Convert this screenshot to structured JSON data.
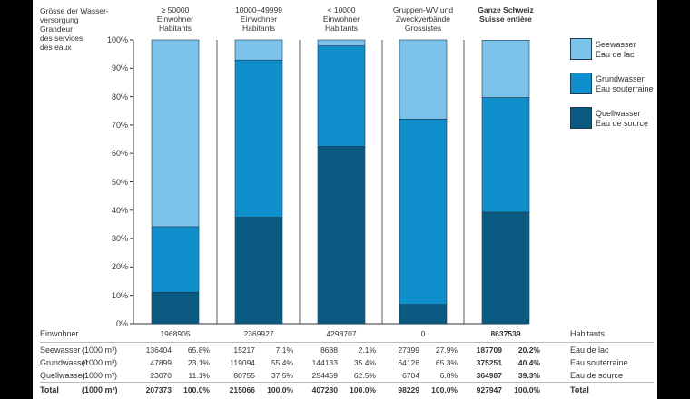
{
  "chart_data": {
    "type": "bar",
    "stacked": true,
    "title": "Grösse der Wasserversorgung / Grandeur des services des eaux",
    "title_lines": [
      "Grösse der Wasser-",
      "versorgung",
      "Grandeur",
      "des services",
      "des eaux"
    ],
    "categories": [
      {
        "de": "≥ 50000",
        "line2": "Einwohner",
        "line3": "Habitants",
        "bold": false
      },
      {
        "de": "10000–49999",
        "line2": "Einwohner",
        "line3": "Habitants",
        "bold": false
      },
      {
        "de": "< 10000",
        "line2": "Einwohner",
        "line3": "Habitants",
        "bold": false
      },
      {
        "de": "Gruppen-WV und",
        "line2": "Zweckverbände",
        "line3": "Grossistes",
        "bold": false
      },
      {
        "de": "Ganze Schweiz",
        "line2": "Suisse entière",
        "line3": "",
        "bold": true
      }
    ],
    "series": [
      {
        "name": "Quellwasser / Eau de source",
        "color": "#0a5a82",
        "values": [
          11.1,
          37.5,
          62.5,
          6.8,
          39.3
        ]
      },
      {
        "name": "Grundwasser / Eau souterraine",
        "color": "#0f8fcc",
        "values": [
          23.1,
          55.4,
          35.4,
          65.3,
          40.4
        ]
      },
      {
        "name": "Seewasser / Eau de lac",
        "color": "#7cc3ec",
        "values": [
          65.8,
          7.1,
          2.1,
          27.9,
          20.2
        ]
      }
    ],
    "ylim": [
      0,
      100
    ],
    "yticks": [
      "0%",
      "10%",
      "20%",
      "30%",
      "40%",
      "50%",
      "60%",
      "70%",
      "80%",
      "90%",
      "100%"
    ],
    "legend": [
      {
        "de": "Seewasser",
        "fr": "Eau de lac",
        "color": "#7cc3ec"
      },
      {
        "de": "Grundwasser",
        "fr": "Eau souterraine",
        "color": "#0f8fcc"
      },
      {
        "de": "Quellwasser",
        "fr": "Eau de source",
        "color": "#0a5a82"
      }
    ],
    "legend_position": "right"
  },
  "table": {
    "inhabitants_label_de": "Einwohner",
    "inhabitants_label_fr": "Habitants",
    "inhabitants": [
      "1968905",
      "2369927",
      "4298707",
      "0",
      "8637539"
    ],
    "rows": [
      {
        "label_de": "Seewasser",
        "unit": "(1000 m³)",
        "label_fr": "Eau de lac",
        "values": [
          "136404",
          "15217",
          "8688",
          "27399",
          "187709"
        ],
        "percents": [
          "65.8%",
          "7.1%",
          "2.1%",
          "27.9%",
          "20.2%"
        ],
        "bold": false
      },
      {
        "label_de": "Grundwasser",
        "unit": "(1000 m³)",
        "label_fr": "Eau souterraine",
        "values": [
          "47899",
          "119094",
          "144133",
          "64126",
          "375251"
        ],
        "percents": [
          "23.1%",
          "55.4%",
          "35.4%",
          "65.3%",
          "40.4%"
        ],
        "bold": false
      },
      {
        "label_de": "Quellwasser",
        "unit": "(1000 m³)",
        "label_fr": "Eau de source",
        "values": [
          "23070",
          "80755",
          "254459",
          "6704",
          "364987"
        ],
        "percents": [
          "11.1%",
          "37.5%",
          "62.5%",
          "6.8%",
          "39.3%"
        ],
        "bold": false
      },
      {
        "label_de": "Total",
        "unit": "(1000 m³)",
        "label_fr": "Total",
        "values": [
          "207373",
          "215066",
          "407280",
          "98229",
          "927947"
        ],
        "percents": [
          "100.0%",
          "100.0%",
          "100.0%",
          "100.0%",
          "100.0%"
        ],
        "bold": true
      }
    ]
  }
}
